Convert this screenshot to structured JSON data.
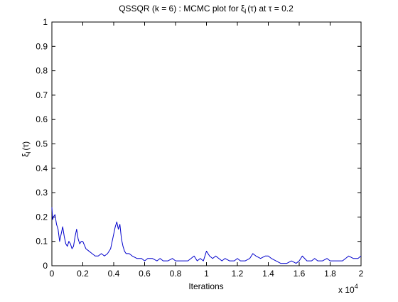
{
  "chart_data": {
    "type": "line",
    "title": {
      "prefix": "QSSQR (k = 6) : MCMC plot for ",
      "xi": "ξ",
      "xi_sub": "l",
      "mid": "(τ) at τ = 0.2"
    },
    "xlabel": "Iterations",
    "ylabel": {
      "xi": "ξ",
      "sub": "l",
      "rest": "(τ)"
    },
    "x_exponent": {
      "base": "x 10",
      "power": "4"
    },
    "xlim": [
      0,
      2
    ],
    "ylim": [
      0,
      1
    ],
    "x_ticks": [
      "0",
      "0.2",
      "0.4",
      "0.6",
      "0.8",
      "1",
      "1.2",
      "1.4",
      "1.6",
      "1.8",
      "2"
    ],
    "y_ticks": [
      "0",
      "0.1",
      "0.2",
      "0.3",
      "0.4",
      "0.5",
      "0.6",
      "0.7",
      "0.8",
      "0.9",
      "1"
    ],
    "grid": false,
    "line_color": "#0000cc",
    "series": [
      {
        "x": [
          0,
          0.005,
          0.01,
          0.02,
          0.03,
          0.04,
          0.05,
          0.06,
          0.07,
          0.08,
          0.09,
          0.1,
          0.11,
          0.12,
          0.13,
          0.14,
          0.15,
          0.16,
          0.17,
          0.18,
          0.19,
          0.2,
          0.22,
          0.24,
          0.26,
          0.28,
          0.3,
          0.32,
          0.34,
          0.36,
          0.38,
          0.39,
          0.4,
          0.41,
          0.42,
          0.43,
          0.44,
          0.45,
          0.46,
          0.47,
          0.48,
          0.5,
          0.52,
          0.55,
          0.58,
          0.6,
          0.62,
          0.65,
          0.68,
          0.7,
          0.72,
          0.75,
          0.78,
          0.8,
          0.82,
          0.85,
          0.88,
          0.9,
          0.92,
          0.94,
          0.96,
          0.98,
          1.0,
          1.02,
          1.04,
          1.06,
          1.08,
          1.1,
          1.12,
          1.15,
          1.18,
          1.2,
          1.22,
          1.25,
          1.28,
          1.3,
          1.32,
          1.35,
          1.38,
          1.4,
          1.42,
          1.45,
          1.48,
          1.5,
          1.52,
          1.55,
          1.58,
          1.6,
          1.62,
          1.65,
          1.68,
          1.7,
          1.72,
          1.75,
          1.78,
          1.8,
          1.82,
          1.85,
          1.88,
          1.9,
          1.92,
          1.95,
          1.98,
          2.0
        ],
        "y": [
          0.24,
          0.19,
          0.2,
          0.21,
          0.17,
          0.15,
          0.1,
          0.13,
          0.16,
          0.12,
          0.09,
          0.08,
          0.1,
          0.09,
          0.07,
          0.08,
          0.12,
          0.15,
          0.11,
          0.09,
          0.1,
          0.1,
          0.07,
          0.06,
          0.05,
          0.04,
          0.04,
          0.05,
          0.04,
          0.05,
          0.07,
          0.1,
          0.13,
          0.16,
          0.18,
          0.15,
          0.17,
          0.11,
          0.08,
          0.06,
          0.05,
          0.05,
          0.04,
          0.03,
          0.03,
          0.02,
          0.03,
          0.03,
          0.02,
          0.03,
          0.02,
          0.02,
          0.03,
          0.02,
          0.02,
          0.02,
          0.02,
          0.03,
          0.04,
          0.02,
          0.03,
          0.02,
          0.06,
          0.04,
          0.03,
          0.04,
          0.03,
          0.02,
          0.03,
          0.02,
          0.02,
          0.03,
          0.02,
          0.02,
          0.03,
          0.05,
          0.04,
          0.03,
          0.04,
          0.04,
          0.03,
          0.02,
          0.01,
          0.01,
          0.01,
          0.02,
          0.01,
          0.02,
          0.04,
          0.02,
          0.02,
          0.03,
          0.02,
          0.02,
          0.03,
          0.02,
          0.02,
          0.02,
          0.02,
          0.03,
          0.04,
          0.03,
          0.03,
          0.04
        ]
      }
    ]
  }
}
